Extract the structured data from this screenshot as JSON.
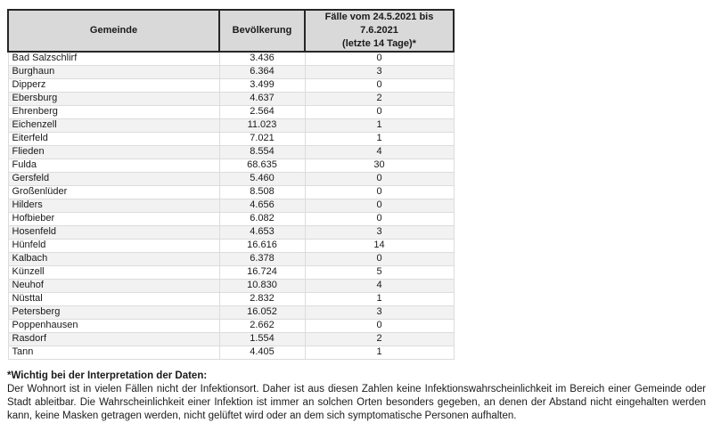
{
  "colors": {
    "header_bg": "#D9D9D9",
    "row_alt_bg": "#F2F2F2",
    "grid_border": "#DCDCDC",
    "header_border": "#262626"
  },
  "table": {
    "header": {
      "gemeinde": "Gemeinde",
      "bevoelkerung": "Bevölkerung",
      "faelle_line1": "Fälle vom 24.5.2021 bis 7.6.2021",
      "faelle_line2": "(letzte 14 Tage)*"
    },
    "rows": [
      [
        "Bad Salzschlirf",
        "3.436",
        "0"
      ],
      [
        "Burghaun",
        "6.364",
        "3"
      ],
      [
        "Dipperz",
        "3.499",
        "0"
      ],
      [
        "Ebersburg",
        "4.637",
        "2"
      ],
      [
        "Ehrenberg",
        "2.564",
        "0"
      ],
      [
        "Eichenzell",
        "11.023",
        "1"
      ],
      [
        "Eiterfeld",
        "7.021",
        "1"
      ],
      [
        "Flieden",
        "8.554",
        "4"
      ],
      [
        "Fulda",
        "68.635",
        "30"
      ],
      [
        "Gersfeld",
        "5.460",
        "0"
      ],
      [
        "Großenlüder",
        "8.508",
        "0"
      ],
      [
        "Hilders",
        "4.656",
        "0"
      ],
      [
        "Hofbieber",
        "6.082",
        "0"
      ],
      [
        "Hosenfeld",
        "4.653",
        "3"
      ],
      [
        "Hünfeld",
        "16.616",
        "14"
      ],
      [
        "Kalbach",
        "6.378",
        "0"
      ],
      [
        "Künzell",
        "16.724",
        "5"
      ],
      [
        "Neuhof",
        "10.830",
        "4"
      ],
      [
        "Nüsttal",
        "2.832",
        "1"
      ],
      [
        "Petersberg",
        "16.052",
        "3"
      ],
      [
        "Poppenhausen",
        "2.662",
        "0"
      ],
      [
        "Rasdorf",
        "1.554",
        "2"
      ],
      [
        "Tann",
        "4.405",
        "1"
      ]
    ]
  },
  "footnote": {
    "title": "*Wichtig bei der Interpretation der Daten:",
    "body": "Der Wohnort ist in vielen Fällen nicht der Infektionsort. Daher ist aus diesen Zahlen keine Infektionswahrscheinlichkeit im Bereich einer Gemeinde oder Stadt ableitbar. Die Wahrscheinlichkeit einer Infektion ist immer an solchen Orten besonders gegeben, an denen der Abstand nicht eingehalten werden kann, keine Masken getragen werden, nicht gelüftet wird oder an dem sich symptomatische Personen aufhalten."
  }
}
